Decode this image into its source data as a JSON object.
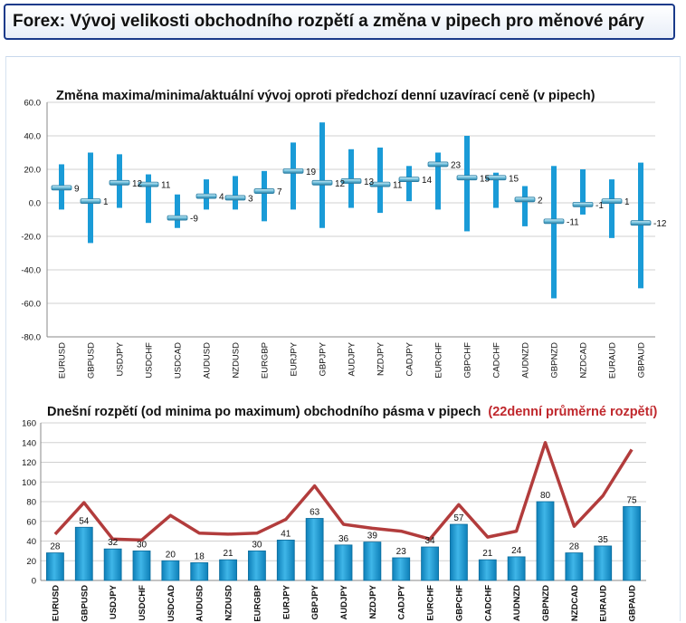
{
  "page_title": "Forex: Vývoj velikosti obchodního rozpětí a změna v pipech pro měnové páry",
  "chart_data": [
    {
      "type": "range",
      "title": "Změna maxima/minima/aktuální vývoj oproti předchozí denní uzavírací ceně (v pipech)",
      "xlabel": "",
      "ylabel": "",
      "ylim": [
        -80,
        60
      ],
      "yticks": [
        "60.0",
        "40.0",
        "20.0",
        "0.0",
        "-20.0",
        "-40.0",
        "-60.0",
        "-80.0"
      ],
      "grid": true,
      "categories": [
        "EURUSD",
        "GBPUSD",
        "USDJPY",
        "USDCHF",
        "USDCAD",
        "AUDUSD",
        "NZDUSD",
        "EURGBP",
        "EURJPY",
        "GBPJPY",
        "AUDJPY",
        "NZDJPY",
        "CADJPY",
        "EURCHF",
        "GBPCHF",
        "CADCHF",
        "AUDNZD",
        "GBPNZD",
        "NZDCAD",
        "EURAUD",
        "GBPAUD"
      ],
      "high": [
        23,
        30,
        29,
        17,
        5,
        14,
        16,
        19,
        36,
        48,
        32,
        33,
        22,
        30,
        40,
        18,
        10,
        22,
        20,
        14,
        24
      ],
      "low": [
        -4,
        -24,
        -3,
        -12,
        -15,
        -4,
        -4,
        -11,
        -4,
        -15,
        -3,
        -6,
        1,
        -4,
        -17,
        -3,
        -14,
        -57,
        -7,
        -21,
        -51
      ],
      "current": [
        9,
        1,
        12,
        11,
        -9,
        4,
        3,
        7,
        19,
        12,
        13,
        11,
        14,
        23,
        15,
        15,
        2,
        -11,
        -1,
        1,
        -12
      ],
      "labels": [
        "9",
        "1",
        "12",
        "11",
        "-9",
        "4",
        "3",
        "7",
        "19",
        "12",
        "13",
        "11",
        "14",
        "23",
        "15",
        "15",
        "2",
        "-11",
        "-1",
        "1",
        "-12"
      ],
      "colors": {
        "bar": "#1a9bd7",
        "marker": "#5bb7d9",
        "grid": "#d0d0d0"
      }
    },
    {
      "type": "bar",
      "title": "Dnešní rozpětí (od minima po maximum) obchodního pásma v pipech",
      "title_highlight": "(22denní průměrné rozpětí)",
      "xlabel": "",
      "ylabel": "",
      "ylim": [
        0,
        160
      ],
      "yticks": [
        "160",
        "140",
        "120",
        "100",
        "80",
        "60",
        "40",
        "20",
        "0"
      ],
      "grid": true,
      "categories": [
        "EURUSD",
        "GBPUSD",
        "USDJPY",
        "USDCHF",
        "USDCAD",
        "AUDUSD",
        "NZDUSD",
        "EURGBP",
        "EURJPY",
        "GBPJPY",
        "AUDJPY",
        "NZDJPY",
        "CADJPY",
        "EURCHF",
        "GBPCHF",
        "CADCHF",
        "AUDNZD",
        "GBPNZD",
        "NZDCAD",
        "EURAUD",
        "GBPAUD"
      ],
      "values": [
        28,
        54,
        32,
        30,
        20,
        18,
        21,
        30,
        41,
        63,
        36,
        39,
        23,
        34,
        57,
        21,
        24,
        80,
        28,
        35,
        75
      ],
      "labels": [
        "28",
        "54",
        "32",
        "30",
        "20",
        "18",
        "21",
        "30",
        "41",
        "63",
        "36",
        "39",
        "23",
        "34",
        "57",
        "21",
        "24",
        "80",
        "28",
        "35",
        "75"
      ],
      "line": [
        47,
        79,
        42,
        41,
        66,
        48,
        47,
        48,
        62,
        96,
        57,
        53,
        50,
        42,
        77,
        44,
        50,
        140,
        55,
        86,
        133
      ],
      "colors": {
        "bar": "#1a9bd7",
        "line": "#b23c3c",
        "highlight": "#c0282d",
        "grid": "#d0d0d0"
      }
    }
  ]
}
